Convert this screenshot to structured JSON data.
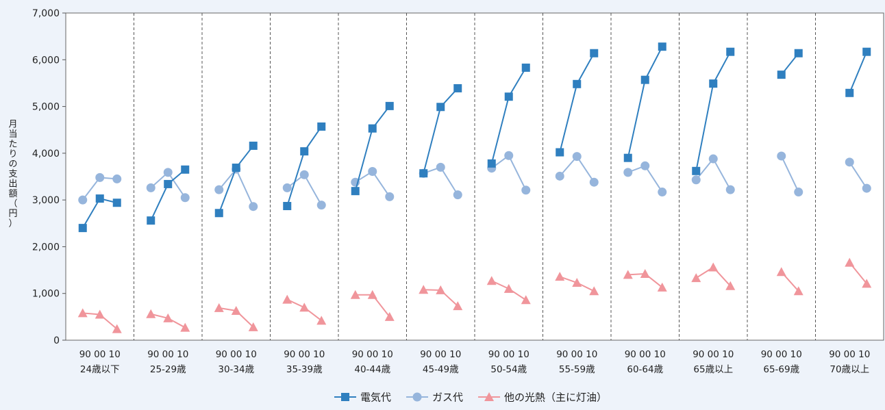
{
  "chart_data": {
    "type": "line",
    "title": "",
    "ylabel": "月当たりの支出額（円）",
    "ylim": [
      0,
      7000
    ],
    "yticks": [
      "0",
      "1,000",
      "2,000",
      "3,000",
      "4,000",
      "5,000",
      "6,000",
      "7,000"
    ],
    "ytick_values": [
      0,
      1000,
      2000,
      3000,
      4000,
      5000,
      6000,
      7000
    ],
    "grid": false,
    "legend_position": "bottom",
    "colors": {
      "electricity": "#2f7fbf",
      "gas": "#96b5dc",
      "other": "#f0959b",
      "background": "#eef3fa"
    },
    "groups": [
      {
        "label": "24歳以下",
        "years": "90 00 10"
      },
      {
        "label": "25-29歳",
        "years": "90 00 10"
      },
      {
        "label": "30-34歳",
        "years": "90 00 10"
      },
      {
        "label": "35-39歳",
        "years": "90 00 10"
      },
      {
        "label": "40-44歳",
        "years": "90 00 10"
      },
      {
        "label": "45-49歳",
        "years": "90 00 10"
      },
      {
        "label": "50-54歳",
        "years": "90 00 10"
      },
      {
        "label": "55-59歳",
        "years": "90 00 10"
      },
      {
        "label": "60-64歳",
        "years": "90 00 10"
      },
      {
        "label": "65歳以上",
        "years": "90 00 10"
      },
      {
        "label": "65-69歳",
        "years": "90 00 10"
      },
      {
        "label": "70歳以上",
        "years": "90 00 10"
      }
    ],
    "series": [
      {
        "name": "電気代",
        "marker": "square",
        "values": [
          [
            2400,
            3030,
            2940
          ],
          [
            2560,
            3340,
            3650
          ],
          [
            2720,
            3690,
            4160
          ],
          [
            2870,
            4040,
            4570
          ],
          [
            3190,
            4530,
            5010
          ],
          [
            3570,
            4990,
            5390
          ],
          [
            3780,
            5210,
            5830
          ],
          [
            4020,
            5480,
            6140
          ],
          [
            3900,
            5570,
            6280
          ],
          [
            3620,
            5490,
            6170
          ],
          [
            null,
            5680,
            6140
          ],
          [
            null,
            5290,
            6170
          ]
        ]
      },
      {
        "name": "ガス代",
        "marker": "circle",
        "values": [
          [
            3000,
            3480,
            3450
          ],
          [
            3260,
            3590,
            3050
          ],
          [
            3220,
            3660,
            2860
          ],
          [
            3260,
            3540,
            2890
          ],
          [
            3380,
            3610,
            3070
          ],
          [
            3570,
            3700,
            3110
          ],
          [
            3680,
            3950,
            3210
          ],
          [
            3510,
            3930,
            3380
          ],
          [
            3590,
            3730,
            3170
          ],
          [
            3430,
            3880,
            3220
          ],
          [
            null,
            3940,
            3170
          ],
          [
            null,
            3810,
            3250
          ]
        ]
      },
      {
        "name": "他の光熱（主に灯油）",
        "marker": "triangle",
        "values": [
          [
            580,
            550,
            240
          ],
          [
            560,
            470,
            270
          ],
          [
            690,
            630,
            280
          ],
          [
            870,
            700,
            420
          ],
          [
            970,
            970,
            500
          ],
          [
            1080,
            1070,
            730
          ],
          [
            1270,
            1100,
            860
          ],
          [
            1360,
            1230,
            1050
          ],
          [
            1400,
            1420,
            1130
          ],
          [
            1330,
            1560,
            1160
          ],
          [
            null,
            1460,
            1050
          ],
          [
            null,
            1660,
            1210
          ]
        ]
      }
    ]
  }
}
